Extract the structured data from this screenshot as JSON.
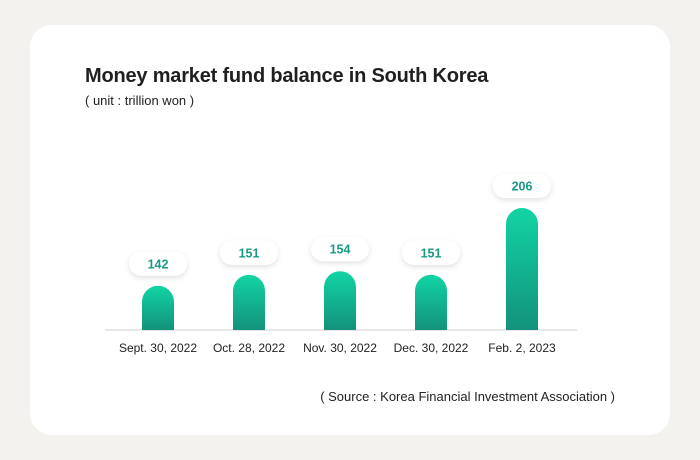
{
  "chart_data": {
    "type": "bar",
    "title": "Money market fund balance in South Korea",
    "subtitle": "( unit : trillion won )",
    "categories": [
      "Sept. 30, 2022",
      "Oct. 28, 2022",
      "Nov. 30, 2022",
      "Dec. 30, 2022",
      "Feb. 2, 2023"
    ],
    "values": [
      142,
      151,
      154,
      151,
      206
    ],
    "value_labels": [
      "142",
      "151",
      "154",
      "151",
      "206"
    ],
    "xlabel": "",
    "ylabel": "",
    "grid": false,
    "legend": "none",
    "source": "( Source : Korea Financial Investment Association )"
  },
  "colors": {
    "bar_top": "#12d4a4",
    "bar_bottom": "#13927c",
    "label_text": "#1a9a86",
    "axis": "#cfcfcf",
    "card": "#ffffff",
    "background": "#f4f2ee"
  }
}
